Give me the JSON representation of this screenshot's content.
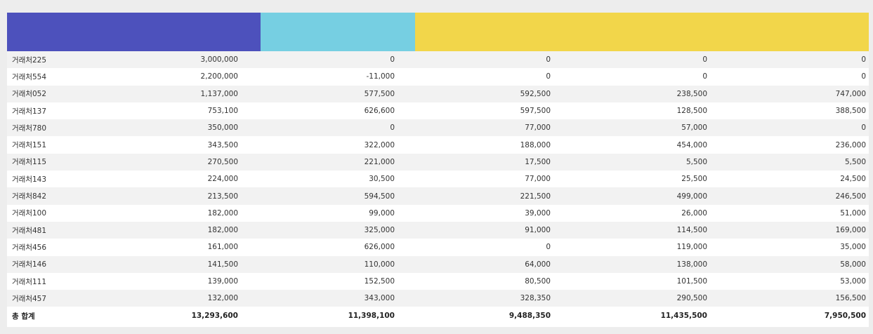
{
  "colors": {
    "header_a": "#4d51bc",
    "header_b": "#76cfe2",
    "header_c": "#f2d64a"
  },
  "rows": [
    {
      "name": "거래처225",
      "v1": "3,000,000",
      "v2": "0",
      "v3": "0",
      "v4": "0",
      "v5": "0"
    },
    {
      "name": "거래처554",
      "v1": "2,200,000",
      "v2": "-11,000",
      "v3": "0",
      "v4": "0",
      "v5": "0"
    },
    {
      "name": "거래처052",
      "v1": "1,137,000",
      "v2": "577,500",
      "v3": "592,500",
      "v4": "238,500",
      "v5": "747,000"
    },
    {
      "name": "거래처137",
      "v1": "753,100",
      "v2": "626,600",
      "v3": "597,500",
      "v4": "128,500",
      "v5": "388,500"
    },
    {
      "name": "거래처780",
      "v1": "350,000",
      "v2": "0",
      "v3": "77,000",
      "v4": "57,000",
      "v5": "0"
    },
    {
      "name": "거래처151",
      "v1": "343,500",
      "v2": "322,000",
      "v3": "188,000",
      "v4": "454,000",
      "v5": "236,000"
    },
    {
      "name": "거래처115",
      "v1": "270,500",
      "v2": "221,000",
      "v3": "17,500",
      "v4": "5,500",
      "v5": "5,500"
    },
    {
      "name": "거래처143",
      "v1": "224,000",
      "v2": "30,500",
      "v3": "77,000",
      "v4": "25,500",
      "v5": "24,500"
    },
    {
      "name": "거래처842",
      "v1": "213,500",
      "v2": "594,500",
      "v3": "221,500",
      "v4": "499,000",
      "v5": "246,500"
    },
    {
      "name": "거래처100",
      "v1": "182,000",
      "v2": "99,000",
      "v3": "39,000",
      "v4": "26,000",
      "v5": "51,000"
    },
    {
      "name": "거래처481",
      "v1": "182,000",
      "v2": "325,000",
      "v3": "91,000",
      "v4": "114,500",
      "v5": "169,000"
    },
    {
      "name": "거래처456",
      "v1": "161,000",
      "v2": "626,000",
      "v3": "0",
      "v4": "119,000",
      "v5": "35,000"
    },
    {
      "name": "거래처146",
      "v1": "141,500",
      "v2": "110,000",
      "v3": "64,000",
      "v4": "138,000",
      "v5": "58,000"
    },
    {
      "name": "거래처111",
      "v1": "139,000",
      "v2": "152,500",
      "v3": "80,500",
      "v4": "101,500",
      "v5": "53,000"
    },
    {
      "name": "거래처457",
      "v1": "132,000",
      "v2": "343,000",
      "v3": "328,350",
      "v4": "290,500",
      "v5": "156,500"
    }
  ],
  "total": {
    "label": "총 합계",
    "v1": "13,293,600",
    "v2": "11,398,100",
    "v3": "9,488,350",
    "v4": "11,435,500",
    "v5": "7,950,500"
  }
}
